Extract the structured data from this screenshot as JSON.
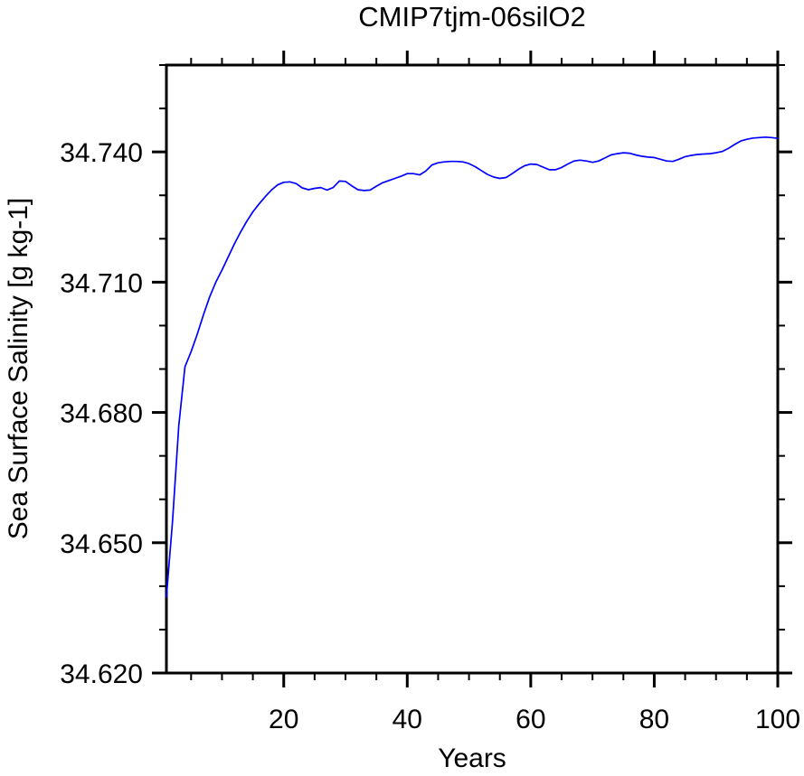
{
  "page": {
    "background": "#ffffff",
    "text_color": "#000000"
  },
  "chart_data": {
    "type": "line",
    "title": "CMIP7tjm-06silO2",
    "xlabel": "Years",
    "ylabel": "Sea Surface Salinity [g kg-1]",
    "xlim": [
      1,
      100
    ],
    "ylim": [
      34.62,
      34.76
    ],
    "x_major_ticks": [
      20,
      40,
      60,
      80,
      100
    ],
    "x_minor_step": 5,
    "y_major_ticks": [
      34.62,
      34.65,
      34.68,
      34.71,
      34.74
    ],
    "y_minor_step": 0.01,
    "y_tick_decimals": 3,
    "grid": false,
    "legend": "none",
    "line_color": "#0000ff",
    "axis_color": "#000000",
    "series": [
      {
        "name": "sea-surface-salinity",
        "x": [
          1,
          2,
          3,
          4,
          5,
          6,
          7,
          8,
          9,
          10,
          11,
          12,
          13,
          14,
          15,
          16,
          17,
          18,
          19,
          20,
          21,
          22,
          23,
          24,
          25,
          26,
          27,
          28,
          29,
          30,
          31,
          32,
          33,
          34,
          35,
          36,
          37,
          38,
          39,
          40,
          41,
          42,
          43,
          44,
          45,
          46,
          47,
          48,
          49,
          50,
          51,
          52,
          53,
          54,
          55,
          56,
          57,
          58,
          59,
          60,
          61,
          62,
          63,
          64,
          65,
          66,
          67,
          68,
          69,
          70,
          71,
          72,
          73,
          74,
          75,
          76,
          77,
          78,
          79,
          80,
          81,
          82,
          83,
          84,
          85,
          86,
          87,
          88,
          89,
          90,
          91,
          92,
          93,
          94,
          95,
          96,
          97,
          98,
          99,
          100
        ],
        "values": [
          34.6375,
          34.655,
          34.677,
          34.6905,
          34.694,
          34.698,
          34.7025,
          34.7066,
          34.71,
          34.7128,
          34.7158,
          34.7188,
          34.7215,
          34.724,
          34.7262,
          34.728,
          34.7297,
          34.7312,
          34.7324,
          34.733,
          34.7331,
          34.7327,
          34.7317,
          34.7313,
          34.7316,
          34.7318,
          34.7312,
          34.7318,
          34.7333,
          34.7332,
          34.7322,
          34.7313,
          34.7311,
          34.7312,
          34.7321,
          34.7329,
          34.7334,
          34.7339,
          34.7344,
          34.735,
          34.735,
          34.7347,
          34.7356,
          34.737,
          34.7375,
          34.7377,
          34.7378,
          34.7378,
          34.7377,
          34.7373,
          34.7366,
          34.7357,
          34.7348,
          34.7342,
          34.7339,
          34.7341,
          34.735,
          34.736,
          34.7368,
          34.7372,
          34.7371,
          34.7365,
          34.7359,
          34.7359,
          34.7364,
          34.7372,
          34.7379,
          34.7381,
          34.7379,
          34.7376,
          34.7379,
          34.7386,
          34.7393,
          34.7396,
          34.7398,
          34.7397,
          34.7393,
          34.739,
          34.7388,
          34.7387,
          34.7383,
          34.7379,
          34.7378,
          34.7383,
          34.7389,
          34.7392,
          34.7394,
          34.7395,
          34.7396,
          34.7398,
          34.7401,
          34.7408,
          34.7417,
          34.7425,
          34.7429,
          34.7432,
          34.7433,
          34.7434,
          34.7433,
          34.7431
        ]
      }
    ]
  }
}
